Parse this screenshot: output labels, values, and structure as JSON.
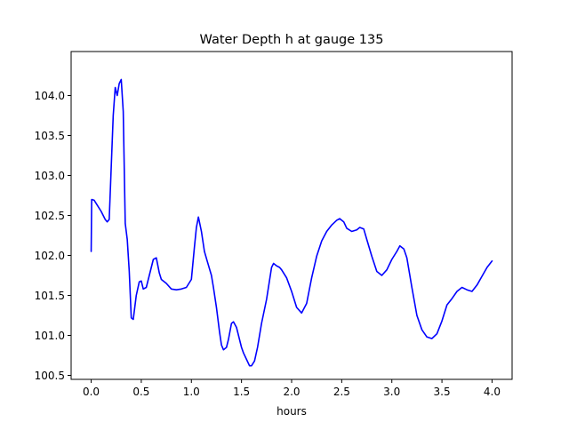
{
  "chart_data": {
    "type": "line",
    "title": "Water Depth h at gauge 135",
    "xlabel": "hours",
    "ylabel": "",
    "xlim": [
      -0.2,
      4.2
    ],
    "ylim": [
      100.45,
      104.55
    ],
    "xticks": [
      0.0,
      0.5,
      1.0,
      1.5,
      2.0,
      2.5,
      3.0,
      3.5,
      4.0
    ],
    "xtick_labels": [
      "0.0",
      "0.5",
      "1.0",
      "1.5",
      "2.0",
      "2.5",
      "3.0",
      "3.5",
      "4.0"
    ],
    "yticks": [
      100.5,
      101.0,
      101.5,
      102.0,
      102.5,
      103.0,
      103.5,
      104.0
    ],
    "ytick_labels": [
      "100.5",
      "101.0",
      "101.5",
      "102.0",
      "102.5",
      "103.0",
      "103.5",
      "104.0"
    ],
    "grid": false,
    "legend": "none",
    "series": [
      {
        "color": "#0000ff",
        "x": [
          0.0,
          0.005,
          0.03,
          0.06,
          0.1,
          0.14,
          0.16,
          0.18,
          0.2,
          0.22,
          0.24,
          0.26,
          0.28,
          0.3,
          0.32,
          0.34,
          0.36,
          0.38,
          0.4,
          0.42,
          0.45,
          0.48,
          0.5,
          0.52,
          0.55,
          0.58,
          0.62,
          0.65,
          0.68,
          0.7,
          0.75,
          0.8,
          0.85,
          0.9,
          0.95,
          1.0,
          1.03,
          1.05,
          1.07,
          1.1,
          1.13,
          1.16,
          1.2,
          1.22,
          1.25,
          1.28,
          1.3,
          1.32,
          1.35,
          1.37,
          1.4,
          1.42,
          1.45,
          1.48,
          1.5,
          1.52,
          1.55,
          1.58,
          1.6,
          1.63,
          1.66,
          1.7,
          1.75,
          1.8,
          1.82,
          1.85,
          1.88,
          1.9,
          1.95,
          2.0,
          2.05,
          2.1,
          2.15,
          2.2,
          2.25,
          2.3,
          2.35,
          2.4,
          2.45,
          2.48,
          2.52,
          2.55,
          2.6,
          2.65,
          2.68,
          2.72,
          2.75,
          2.8,
          2.85,
          2.9,
          2.95,
          3.0,
          3.05,
          3.08,
          3.12,
          3.15,
          3.2,
          3.25,
          3.3,
          3.35,
          3.4,
          3.45,
          3.5,
          3.55,
          3.6,
          3.65,
          3.7,
          3.75,
          3.8,
          3.85,
          3.9,
          3.95,
          4.0
        ],
        "y": [
          102.05,
          102.7,
          102.69,
          102.63,
          102.55,
          102.45,
          102.42,
          102.45,
          103.1,
          103.75,
          104.1,
          104.0,
          104.15,
          104.2,
          103.8,
          102.4,
          102.2,
          101.8,
          101.22,
          101.2,
          101.5,
          101.67,
          101.68,
          101.58,
          101.6,
          101.75,
          101.95,
          101.97,
          101.78,
          101.7,
          101.65,
          101.58,
          101.57,
          101.58,
          101.6,
          101.7,
          102.1,
          102.35,
          102.48,
          102.3,
          102.05,
          101.92,
          101.75,
          101.6,
          101.35,
          101.05,
          100.88,
          100.82,
          100.85,
          100.95,
          101.15,
          101.17,
          101.1,
          100.95,
          100.85,
          100.78,
          100.7,
          100.62,
          100.62,
          100.68,
          100.85,
          101.15,
          101.45,
          101.85,
          101.9,
          101.87,
          101.85,
          101.82,
          101.72,
          101.55,
          101.35,
          101.28,
          101.4,
          101.72,
          101.99,
          102.18,
          102.3,
          102.38,
          102.44,
          102.46,
          102.42,
          102.34,
          102.3,
          102.32,
          102.35,
          102.33,
          102.2,
          101.99,
          101.8,
          101.75,
          101.82,
          101.95,
          102.05,
          102.12,
          102.08,
          101.97,
          101.6,
          101.25,
          101.07,
          100.98,
          100.96,
          101.02,
          101.18,
          101.38,
          101.46,
          101.55,
          101.6,
          101.57,
          101.55,
          101.63,
          101.74,
          101.85,
          101.93
        ]
      }
    ]
  }
}
